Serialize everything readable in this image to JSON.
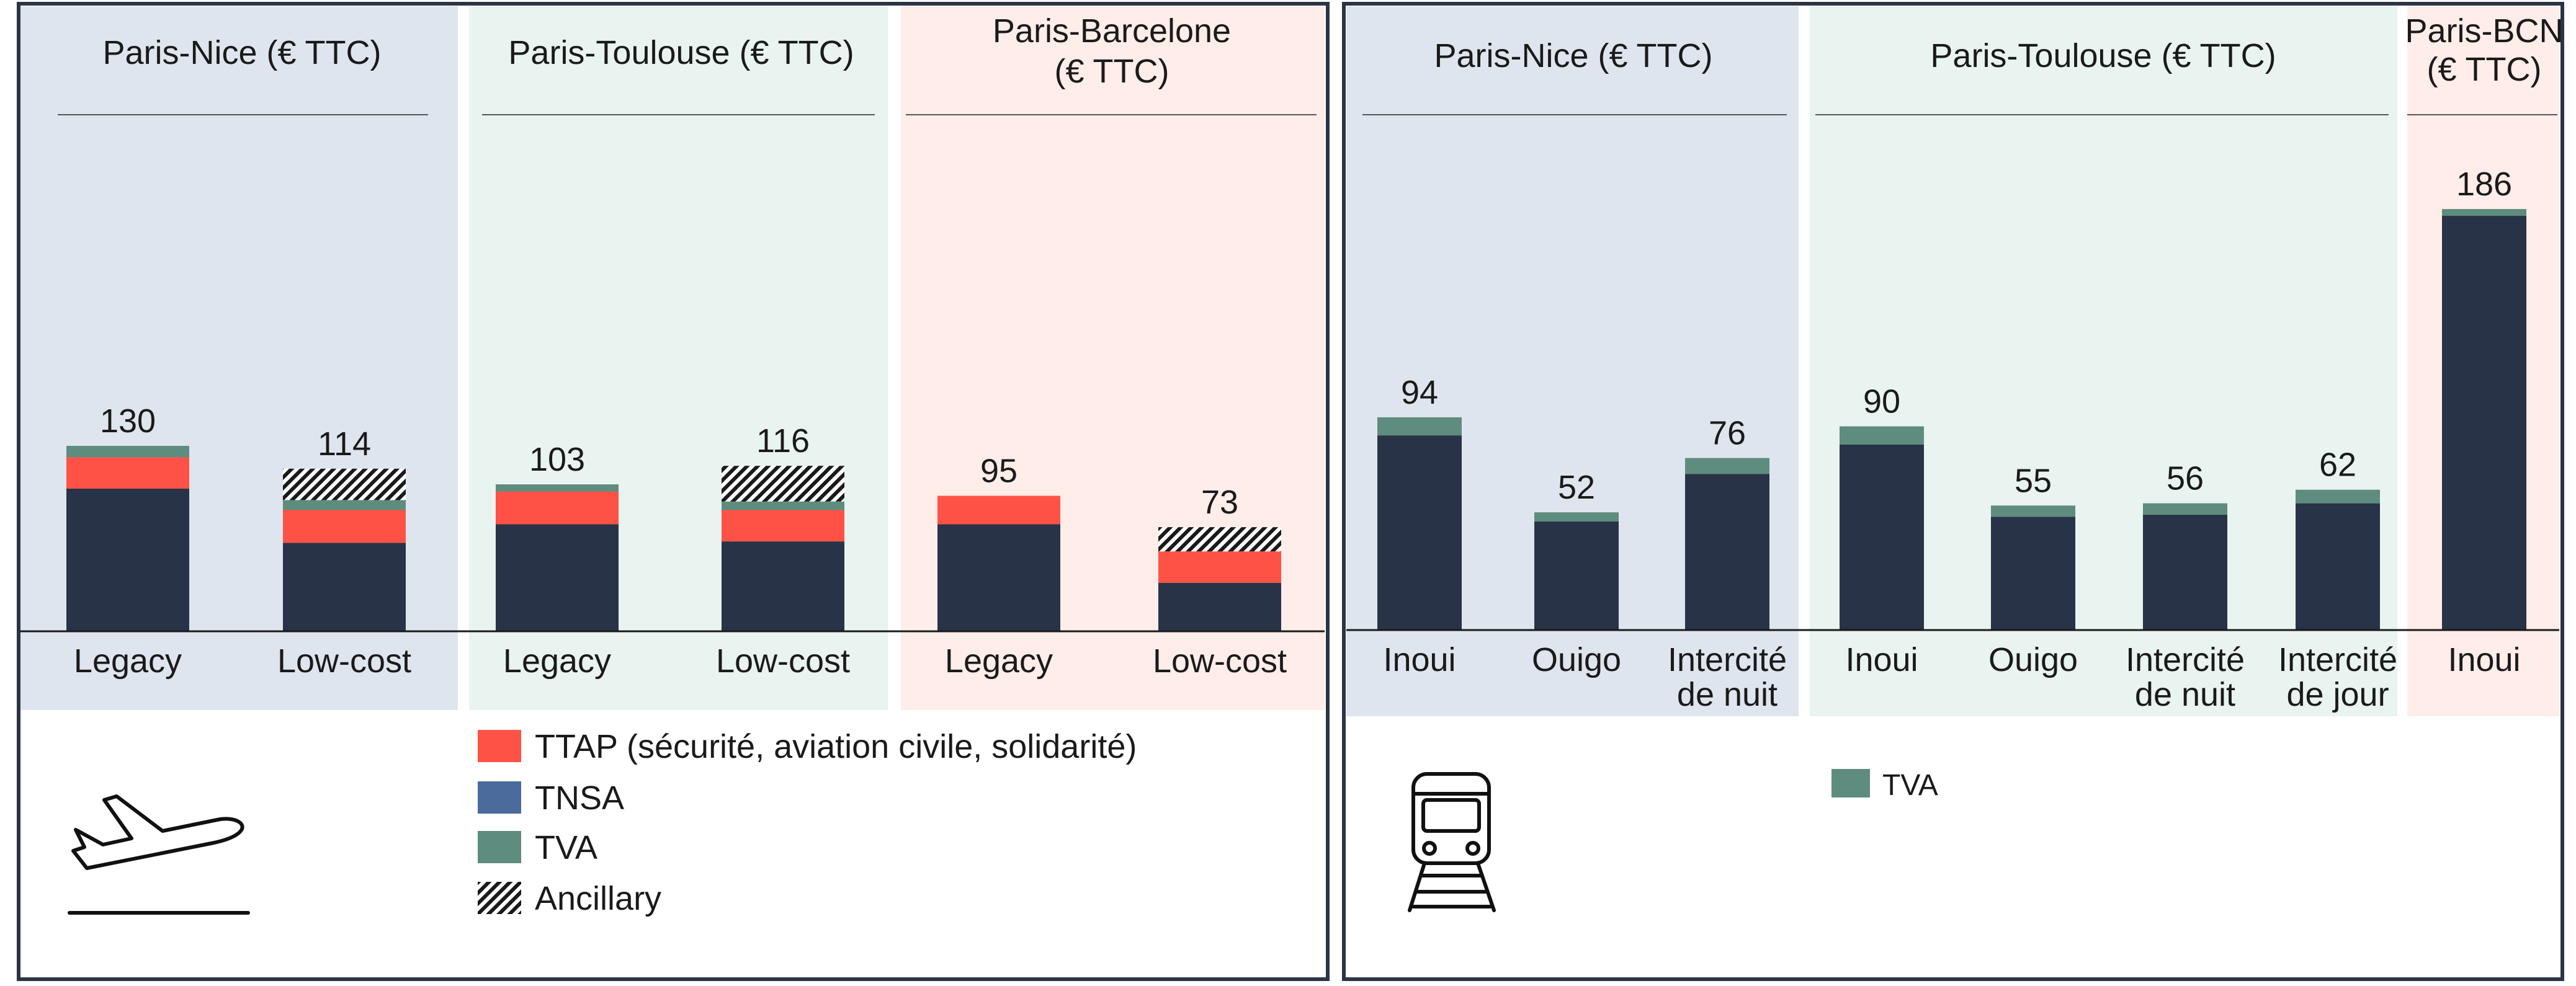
{
  "colors": {
    "base": "#283347",
    "ttap": "#ff5246",
    "tnsa": "#4a6b9c",
    "tva": "#5e8c7e",
    "panel_border": "#2c3444",
    "bg_blue": "#dfe5ee",
    "bg_green": "#e9f3ef",
    "bg_pink": "#ffede9"
  },
  "icons": {
    "air_panel": "airplane-takeoff-icon",
    "rail_panel": "train-icon"
  },
  "air_panel": {
    "legend": [
      {
        "key": "ttap",
        "label": "TTAP (sécurité, aviation civile, solidarité)"
      },
      {
        "key": "tnsa",
        "label": "TNSA"
      },
      {
        "key": "tva",
        "label": "TVA"
      },
      {
        "key": "ancillary",
        "label": "Ancillary"
      }
    ]
  },
  "rail_panel": {
    "legend": [
      {
        "key": "tva",
        "label": "TVA"
      }
    ]
  },
  "chart_data": [
    {
      "type": "bar",
      "stacked": true,
      "mode": "air",
      "groups": [
        {
          "title_lines": [
            "Paris-Nice (€ TTC)"
          ],
          "categories": [
            "Legacy",
            "Low-cost"
          ]
        },
        {
          "title_lines": [
            "Paris-Toulouse (€ TTC)"
          ],
          "categories": [
            "Legacy",
            "Low-cost"
          ]
        },
        {
          "title_lines": [
            "Paris-Barcelone",
            "(€ TTC)"
          ],
          "categories": [
            "Legacy",
            "Low-cost"
          ]
        }
      ],
      "categories": [
        "Legacy",
        "Low-cost",
        "Legacy",
        "Low-cost",
        "Legacy",
        "Low-cost"
      ],
      "series": [
        {
          "key": "base",
          "values": [
            100,
            62,
            75,
            63,
            75,
            34
          ]
        },
        {
          "key": "ttap",
          "values": [
            22,
            23,
            23,
            22,
            20,
            22
          ]
        },
        {
          "key": "tva",
          "values": [
            8,
            7,
            5,
            6,
            0,
            0
          ]
        },
        {
          "key": "ancillary",
          "values": [
            0,
            22,
            0,
            25,
            0,
            17
          ]
        }
      ],
      "totals": [
        "130",
        "114",
        "103",
        "116",
        "95",
        "73"
      ],
      "ylim": [
        0,
        200
      ],
      "legend_position": "bottom"
    },
    {
      "type": "bar",
      "stacked": true,
      "mode": "rail",
      "groups": [
        {
          "title_lines": [
            "Paris-Nice (€ TTC)"
          ],
          "categories": [
            "Inoui",
            "Ouigo",
            "Intercité de nuit"
          ]
        },
        {
          "title_lines": [
            "Paris-Toulouse (€ TTC)"
          ],
          "categories": [
            "Inoui",
            "Ouigo",
            "Intercité de nuit",
            "Intercité de jour"
          ]
        },
        {
          "title_lines": [
            "Paris-BCN",
            "(€ TTC)"
          ],
          "categories": [
            "Inoui"
          ]
        }
      ],
      "categories": [
        "Inoui",
        "Ouigo",
        "Intercité de nuit",
        "Inoui",
        "Ouigo",
        "Intercité de nuit",
        "Intercité de jour",
        "Inoui"
      ],
      "series": [
        {
          "key": "base",
          "values": [
            86,
            48,
            69,
            82,
            50,
            51,
            56,
            183
          ]
        },
        {
          "key": "tva",
          "values": [
            8,
            4,
            7,
            8,
            5,
            5,
            6,
            3
          ]
        }
      ],
      "totals": [
        "94",
        "52",
        "76",
        "90",
        "55",
        "56",
        "62",
        "186"
      ],
      "ylim": [
        0,
        200
      ],
      "legend_position": "bottom"
    }
  ]
}
